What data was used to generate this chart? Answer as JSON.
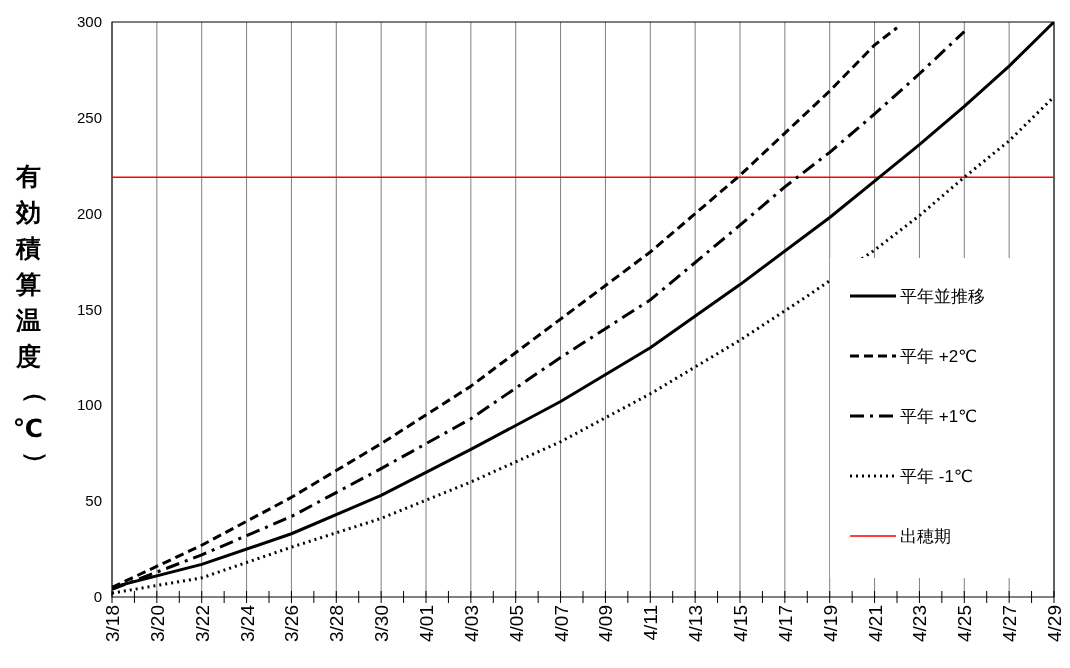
{
  "chart_data": {
    "type": "line",
    "ylabel": "有効積算温度（℃）",
    "xlim": [
      "--03-18",
      "--04-29"
    ],
    "xticks": [
      {
        "value": "--03-18",
        "label": "3/18"
      },
      {
        "value": "--03-19",
        "label": null
      },
      {
        "value": "--03-20",
        "label": "3/20"
      },
      {
        "value": "--03-21",
        "label": null
      },
      {
        "value": "--03-22",
        "label": "3/22"
      },
      {
        "value": "--03-23",
        "label": null
      },
      {
        "value": "--03-24",
        "label": "3/24"
      },
      {
        "value": "--03-25",
        "label": null
      },
      {
        "value": "--03-26",
        "label": "3/26"
      },
      {
        "value": "--03-27",
        "label": null
      },
      {
        "value": "--03-28",
        "label": "3/28"
      },
      {
        "value": "--03-29",
        "label": null
      },
      {
        "value": "--03-30",
        "label": "3/30"
      },
      {
        "value": "--03-31",
        "label": null
      },
      {
        "value": "--04-01",
        "label": "4/01"
      },
      {
        "value": "--04-02",
        "label": null
      },
      {
        "value": "--04-03",
        "label": "4/03"
      },
      {
        "value": "--04-04",
        "label": null
      },
      {
        "value": "--04-05",
        "label": "4/05"
      },
      {
        "value": "--04-06",
        "label": null
      },
      {
        "value": "--04-07",
        "label": "4/07"
      },
      {
        "value": "--04-08",
        "label": null
      },
      {
        "value": "--04-09",
        "label": "4/09"
      },
      {
        "value": "--04-10",
        "label": null
      },
      {
        "value": "--04-11",
        "label": "4/11"
      },
      {
        "value": "--04-12",
        "label": null
      },
      {
        "value": "--04-13",
        "label": "4/13"
      },
      {
        "value": "--04-14",
        "label": null
      },
      {
        "value": "--04-15",
        "label": "4/15"
      },
      {
        "value": "--04-16",
        "label": null
      },
      {
        "value": "--04-17",
        "label": "4/17"
      },
      {
        "value": "--04-18",
        "label": null
      },
      {
        "value": "--04-19",
        "label": "4/19"
      },
      {
        "value": "--04-20",
        "label": null
      },
      {
        "value": "--04-21",
        "label": "4/21"
      },
      {
        "value": "--04-22",
        "label": null
      },
      {
        "value": "--04-23",
        "label": "4/23"
      },
      {
        "value": "--04-24",
        "label": null
      },
      {
        "value": "--04-25",
        "label": "4/25"
      },
      {
        "value": "--04-26",
        "label": null
      },
      {
        "value": "--04-27",
        "label": "4/27"
      },
      {
        "value": "--04-28",
        "label": null
      },
      {
        "value": "--04-29",
        "label": "4/29"
      }
    ],
    "ylim": [
      0,
      300
    ],
    "yticks": [
      0,
      50,
      100,
      150,
      200,
      250,
      300
    ],
    "grid": "x",
    "legend": "bottom right",
    "series": [
      {
        "name": "平年並推移",
        "color": "#000000",
        "line_style": "solid",
        "x": [
          "--03-18",
          "--03-22",
          "--03-26",
          "--03-30",
          "--04-03",
          "--04-07",
          "--04-11",
          "--04-15",
          "--04-19",
          "--04-21",
          "--04-23",
          "--04-25",
          "--04-27",
          "--04-29"
        ],
        "values": [
          5,
          17,
          33,
          53,
          77,
          102,
          130,
          163,
          198,
          217,
          236,
          256,
          277,
          300
        ]
      },
      {
        "name": "平年 +2℃",
        "color": "#000000",
        "line_style": "dashed",
        "x": [
          "--03-18",
          "--03-22",
          "--03-26",
          "--03-30",
          "--04-03",
          "--04-07",
          "--04-11",
          "--04-15",
          "--04-19",
          "--04-21",
          "--04-22"
        ],
        "values": [
          5,
          27,
          52,
          80,
          110,
          145,
          180,
          220,
          264,
          288,
          297
        ]
      },
      {
        "name": "平年 +1℃",
        "color": "#000000",
        "line_style": "dashdot",
        "x": [
          "--03-18",
          "--03-22",
          "--03-26",
          "--03-30",
          "--04-03",
          "--04-07",
          "--04-11",
          "--04-15",
          "--04-17",
          "--04-19",
          "--04-21",
          "--04-23",
          "--04-25"
        ],
        "values": [
          4,
          22,
          42,
          67,
          93,
          125,
          155,
          194,
          214,
          232,
          252,
          273,
          295
        ]
      },
      {
        "name": "平年 -1℃",
        "color": "#000000",
        "line_style": "dotted",
        "x": [
          "--03-18",
          "--03-22",
          "--03-26",
          "--03-30",
          "--04-03",
          "--04-07",
          "--04-11",
          "--04-15",
          "--04-18",
          "--04-21",
          "--04-23",
          "--04-25",
          "--04-27",
          "--04-29"
        ],
        "values": [
          2,
          10,
          26,
          41,
          60,
          81,
          106,
          134,
          157,
          181,
          199,
          219,
          238,
          261
        ]
      }
    ],
    "ref_lines": [
      {
        "axis": "y",
        "value": 219,
        "label": "出穂期",
        "color": "#ff0000"
      }
    ]
  }
}
